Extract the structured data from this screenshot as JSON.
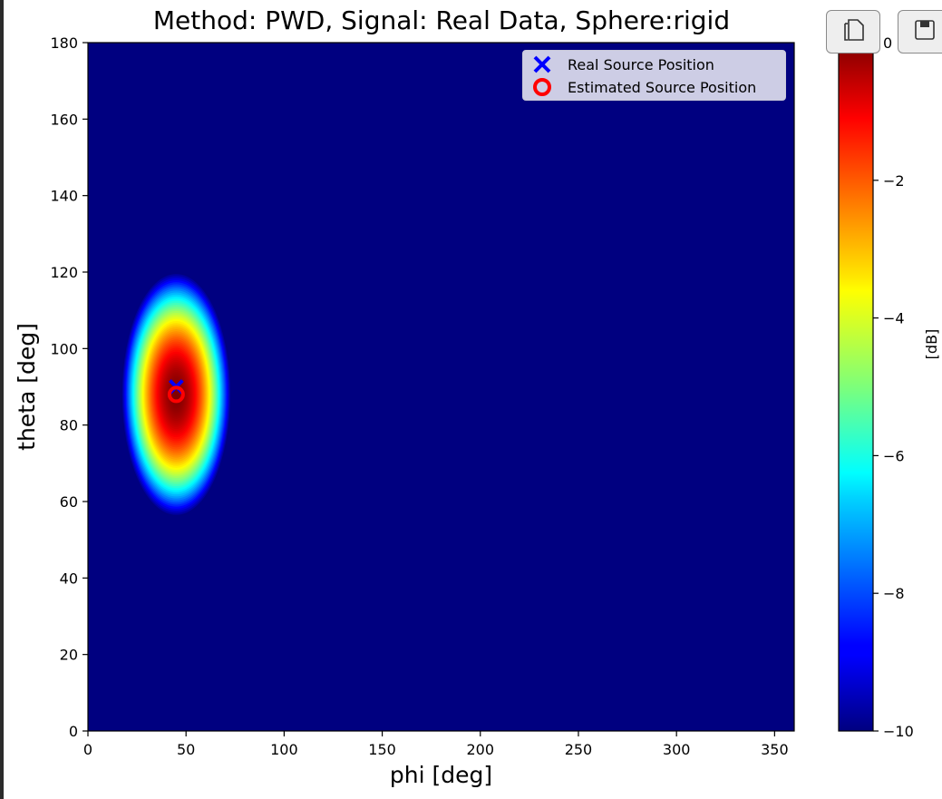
{
  "chart_data": {
    "type": "heatmap",
    "title": "Method: PWD, Signal: Real Data, Sphere:rigid",
    "xlabel": "phi [deg]",
    "ylabel": "theta [deg]",
    "xlim": [
      0,
      360
    ],
    "ylim": [
      0,
      180
    ],
    "xticks": [
      0,
      50,
      100,
      150,
      200,
      250,
      300,
      350
    ],
    "yticks": [
      0,
      20,
      40,
      60,
      80,
      100,
      120,
      140,
      160,
      180
    ],
    "colormap": "jet",
    "colorbar": {
      "label": "[dB]",
      "range": [
        -10,
        0
      ],
      "ticks": [
        0,
        -2,
        -4,
        -6,
        -8,
        -10
      ],
      "tick_labels": [
        "0",
        "−2",
        "−4",
        "−6",
        "−8",
        "−10"
      ]
    },
    "peak": {
      "phi": 45,
      "theta": 88,
      "db": 0,
      "phi_halfwidth_at_floor": 28,
      "theta_halfwidth_at_floor": 32
    },
    "floor_db": -10,
    "markers": [
      {
        "name": "Real Source Position",
        "symbol": "x",
        "color": "#0000ff",
        "phi": 45,
        "theta": 90
      },
      {
        "name": "Estimated Source Position",
        "symbol": "o",
        "color": "#ff0000",
        "phi": 45,
        "theta": 88
      }
    ],
    "legend_position": "upper-right",
    "grid": false
  },
  "toolbar": {
    "buttons": [
      {
        "name": "copy-button",
        "icon": "copy-icon"
      },
      {
        "name": "save-button",
        "icon": "floppy-disk-icon"
      }
    ]
  }
}
